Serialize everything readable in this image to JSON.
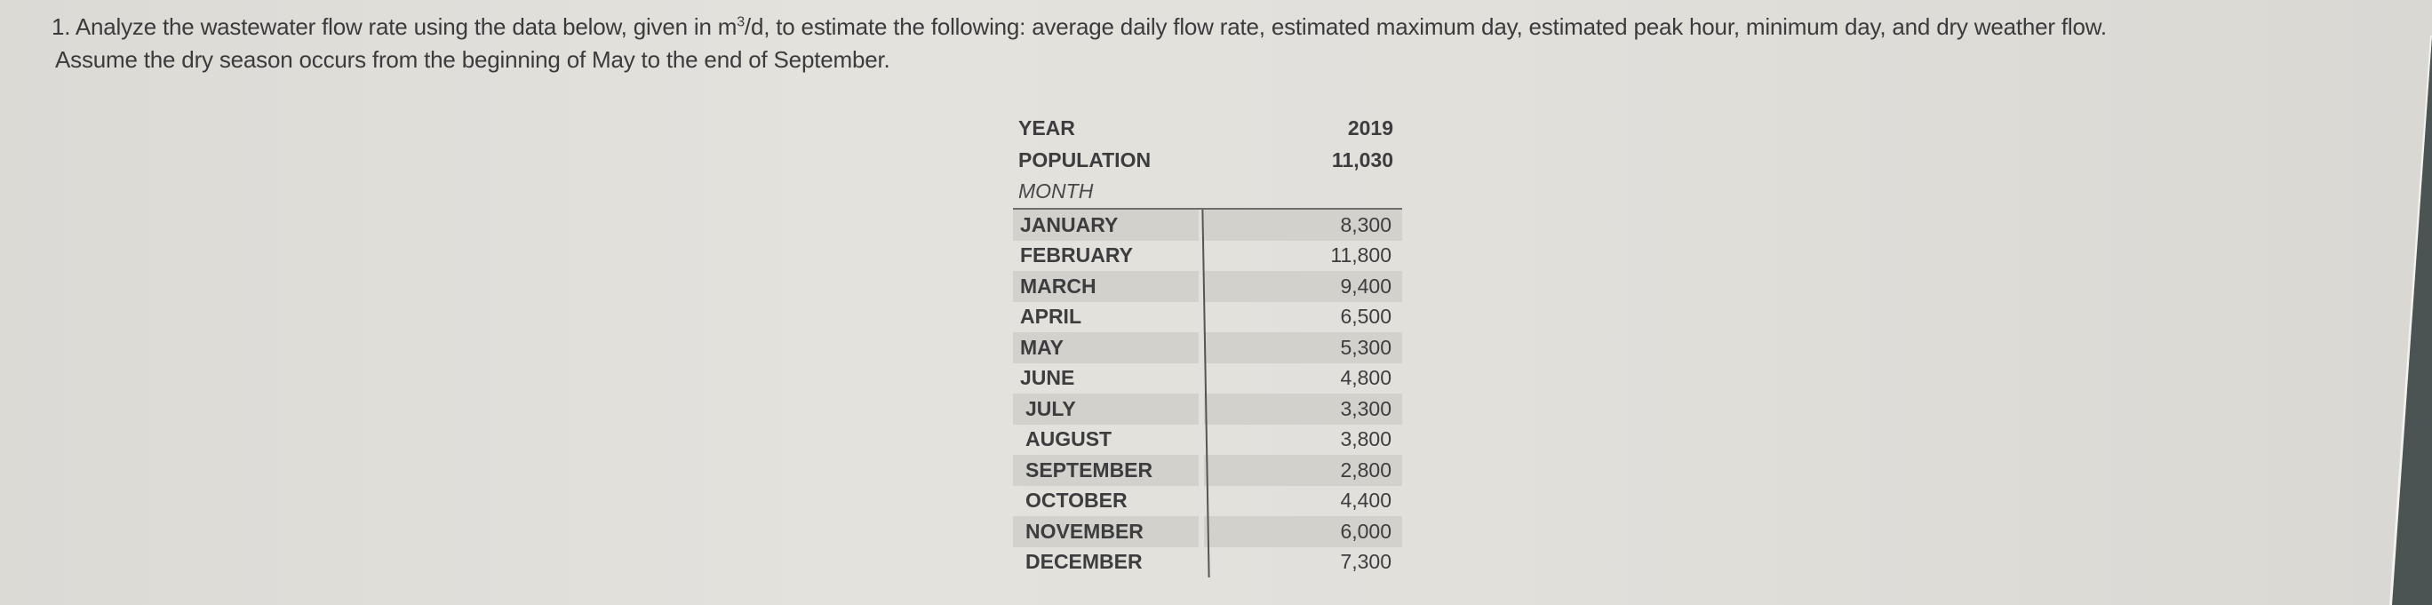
{
  "question": {
    "number": "1.",
    "line1_before_sup": "Analyze the wastewater flow rate using the data below, given in m",
    "sup": "3",
    "line1_after_sup": "/d, to estimate the following: average daily flow rate, estimated maximum day, estimated peak hour, minimum day, and dry weather flow.",
    "line2": "Assume the dry season occurs from the beginning of May to the end of September."
  },
  "table": {
    "year_label": "YEAR",
    "year_value": "2019",
    "population_label": "POPULATION",
    "population_value": "11,030",
    "month_header": "MONTH",
    "rows": [
      {
        "month": "JANUARY",
        "flow": "8,300"
      },
      {
        "month": "FEBRUARY",
        "flow": "11,800"
      },
      {
        "month": "MARCH",
        "flow": "9,400"
      },
      {
        "month": "APRIL",
        "flow": "6,500"
      },
      {
        "month": "MAY",
        "flow": "5,300"
      },
      {
        "month": "JUNE",
        "flow": "4,800"
      },
      {
        "month": "JULY",
        "flow": "3,300"
      },
      {
        "month": "AUGUST",
        "flow": "3,800"
      },
      {
        "month": "SEPTEMBER",
        "flow": "2,800"
      },
      {
        "month": "OCTOBER",
        "flow": "4,400"
      },
      {
        "month": "NOVEMBER",
        "flow": "6,000"
      },
      {
        "month": "DECEMBER",
        "flow": "7,300"
      }
    ]
  },
  "colors": {
    "paper": "#e2e0db",
    "text": "#3b3b3d",
    "row_shade": "#d3d1cc",
    "background_surface": "#4b5452"
  }
}
